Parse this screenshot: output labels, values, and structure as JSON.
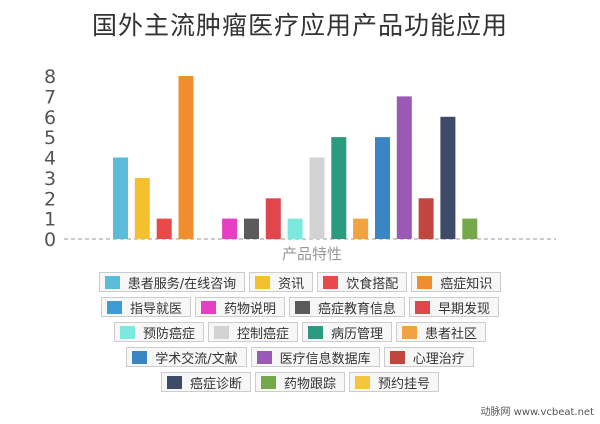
{
  "title": "国外主流肿瘤医疗应用产品功能应用",
  "watermark": "动脉网 www.vcbeat.net",
  "chart_data": {
    "type": "bar",
    "xlabel": "产品特性",
    "ylabel": "",
    "ylim": [
      0,
      8
    ],
    "yticks": [
      0,
      1,
      2,
      3,
      4,
      5,
      6,
      7,
      8
    ],
    "grid": false,
    "legend_position": "bottom",
    "series": [
      {
        "name": "患者服务/在线咨询",
        "color": "#5bbcd9",
        "value": 4
      },
      {
        "name": "资讯",
        "color": "#f5c02e",
        "value": 3
      },
      {
        "name": "饮食搭配",
        "color": "#e84a4a",
        "value": 1
      },
      {
        "name": "癌症知识",
        "color": "#f08d2f",
        "value": 8
      },
      {
        "name": "指导就医",
        "color": "#3d9bd6",
        "value": 0
      },
      {
        "name": "药物说明",
        "color": "#e63fc4",
        "value": 1
      },
      {
        "name": "癌症教育信息",
        "color": "#5c5a5a",
        "value": 1
      },
      {
        "name": "早期发现",
        "color": "#e0474c",
        "value": 2
      },
      {
        "name": "预防癌症",
        "color": "#7de8de",
        "value": 1
      },
      {
        "name": "控制癌症",
        "color": "#d3d3d3",
        "value": 4
      },
      {
        "name": "病历管理",
        "color": "#2a9a80",
        "value": 5
      },
      {
        "name": "患者社区",
        "color": "#f2a240",
        "value": 1
      },
      {
        "name": "学术交流/文献",
        "color": "#3a86c4",
        "value": 5
      },
      {
        "name": "医疗信息数据库",
        "color": "#9b59b6",
        "value": 7
      },
      {
        "name": "心理治疗",
        "color": "#c0463e",
        "value": 2
      },
      {
        "name": "癌症诊断",
        "color": "#3d4a68",
        "value": 6
      },
      {
        "name": "药物跟踪",
        "color": "#74a84a",
        "value": 1
      },
      {
        "name": "预约挂号",
        "color": "#f5c542",
        "value": 0
      }
    ],
    "legend_rows": [
      [
        0,
        1,
        2,
        3
      ],
      [
        4,
        5,
        6,
        7
      ],
      [
        8,
        9,
        10,
        11
      ],
      [
        12,
        13,
        14
      ],
      [
        15,
        16,
        17
      ]
    ]
  }
}
